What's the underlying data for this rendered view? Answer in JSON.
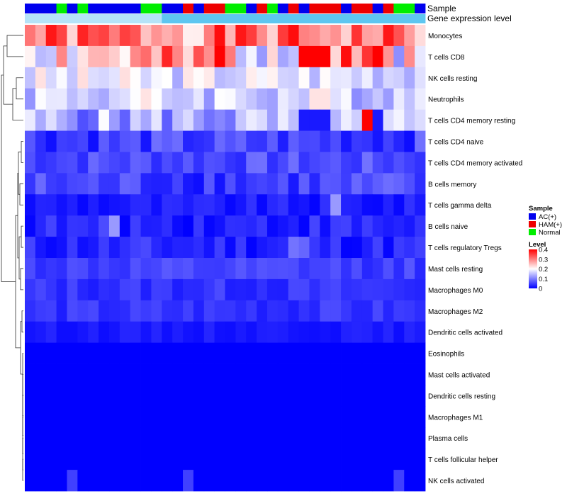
{
  "chart_data": {
    "type": "heatmap",
    "title": "",
    "column_annotation_titles": {
      "sample": "Sample",
      "expression": "Gene expression level"
    },
    "color_scale": {
      "low": "#0000ff",
      "mid": "#ffffff",
      "high": "#ff0000",
      "min": 0,
      "mid_value": 0.2,
      "max": 0.4
    },
    "groups": [
      {
        "name": "AC(+)",
        "code": "A",
        "color": "#0000ee"
      },
      {
        "name": "HAM(+)",
        "code": "H",
        "color": "#ee0000"
      },
      {
        "name": "Normal",
        "code": "N",
        "color": "#00ee00"
      }
    ],
    "sample_groups": "AAANANAAAAANNAAHAHHNNAHNAHAHHHAHHAHNNA",
    "legend": {
      "sample_title": "Sample",
      "level_title": "Level",
      "level_ticks": [
        "0.4",
        "0.3",
        "0.2",
        "0.1",
        "0"
      ],
      "level_tick_values": [
        0.4,
        0.3,
        0.2,
        0.1,
        0
      ]
    },
    "rows": [
      {
        "label": "Monocytes",
        "base": 0.3,
        "spread": 0.09,
        "seed": 1,
        "extremes": []
      },
      {
        "label": "T cells CD8",
        "base": 0.24,
        "spread": 0.13,
        "seed": 2,
        "extremes": [
          [
            18,
            0.4
          ],
          [
            26,
            0.4
          ],
          [
            27,
            0.4
          ],
          [
            28,
            0.4
          ],
          [
            30,
            0.39
          ],
          [
            33,
            0.4
          ]
        ]
      },
      {
        "label": "NK cells resting",
        "base": 0.18,
        "spread": 0.05,
        "seed": 3,
        "extremes": []
      },
      {
        "label": "Neutrophils",
        "base": 0.17,
        "spread": 0.06,
        "seed": 4,
        "extremes": []
      },
      {
        "label": "T cells CD4 memory resting",
        "base": 0.13,
        "spread": 0.07,
        "seed": 5,
        "extremes": [
          [
            32,
            0.4
          ],
          [
            33,
            0.02
          ],
          [
            26,
            0.02
          ],
          [
            27,
            0.02
          ],
          [
            28,
            0.02
          ]
        ]
      },
      {
        "label": "T cells CD4 naive",
        "base": 0.05,
        "spread": 0.04,
        "seed": 6,
        "extremes": []
      },
      {
        "label": "T cells CD4 memory activated",
        "base": 0.06,
        "spread": 0.03,
        "seed": 7,
        "extremes": []
      },
      {
        "label": "B cells memory",
        "base": 0.05,
        "spread": 0.04,
        "seed": 8,
        "extremes": []
      },
      {
        "label": "T cells gamma delta",
        "base": 0.02,
        "spread": 0.02,
        "seed": 9,
        "extremes": [
          [
            29,
            0.12
          ]
        ]
      },
      {
        "label": "B cells naive",
        "base": 0.03,
        "spread": 0.03,
        "seed": 10,
        "extremes": [
          [
            8,
            0.12
          ]
        ]
      },
      {
        "label": "T cells regulatory  Tregs",
        "base": 0.03,
        "spread": 0.03,
        "seed": 11,
        "extremes": [
          [
            25,
            0.09
          ],
          [
            26,
            0.08
          ]
        ]
      },
      {
        "label": "Mast cells resting",
        "base": 0.05,
        "spread": 0.02,
        "seed": 12,
        "extremes": []
      },
      {
        "label": "Macrophages M0",
        "base": 0.04,
        "spread": 0.02,
        "seed": 13,
        "extremes": []
      },
      {
        "label": "Macrophages M2",
        "base": 0.04,
        "spread": 0.02,
        "seed": 14,
        "extremes": []
      },
      {
        "label": "Dendritic cells activated",
        "base": 0.02,
        "spread": 0.01,
        "seed": 15,
        "extremes": []
      },
      {
        "label": "Eosinophils",
        "base": 0.0,
        "spread": 0.0,
        "seed": 16,
        "extremes": []
      },
      {
        "label": "Mast cells activated",
        "base": 0.0,
        "spread": 0.0,
        "seed": 17,
        "extremes": []
      },
      {
        "label": "Dendritic cells resting",
        "base": 0.0,
        "spread": 0.0,
        "seed": 18,
        "extremes": []
      },
      {
        "label": "Macrophages M1",
        "base": 0.0,
        "spread": 0.0,
        "seed": 19,
        "extremes": []
      },
      {
        "label": "Plasma cells",
        "base": 0.0,
        "spread": 0.0,
        "seed": 20,
        "extremes": []
      },
      {
        "label": "T cells follicular helper",
        "base": 0.0,
        "spread": 0.0,
        "seed": 21,
        "extremes": []
      },
      {
        "label": "NK cells activated",
        "base": 0.0,
        "spread": 0.0,
        "seed": 22,
        "extremes": [
          [
            4,
            0.05
          ],
          [
            15,
            0.05
          ],
          [
            35,
            0.05
          ]
        ]
      }
    ]
  }
}
